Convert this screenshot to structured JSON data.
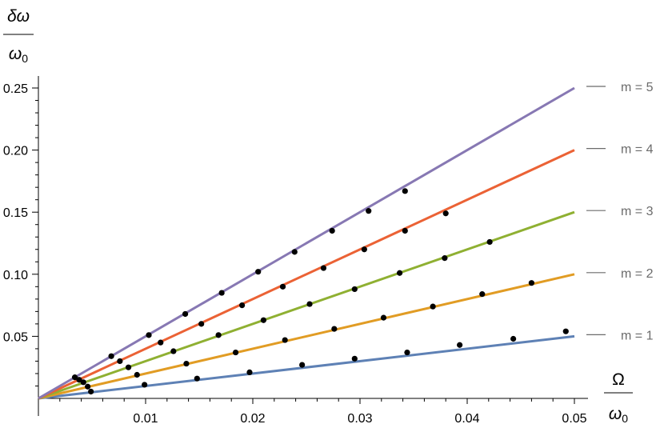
{
  "chart_data": {
    "type": "line",
    "title": "",
    "xlabel": {
      "numerator": "Ω",
      "denominator": "ω0"
    },
    "ylabel": {
      "numerator": "δω",
      "denominator": "ω0"
    },
    "xlim": [
      0,
      0.05
    ],
    "ylim": [
      0,
      0.25
    ],
    "x_ticks": [
      0.01,
      0.02,
      0.03,
      0.04,
      0.05
    ],
    "x_tick_labels": [
      "0.01",
      "0.02",
      "0.03",
      "0.04",
      "0.05"
    ],
    "y_ticks": [
      0.05,
      0.1,
      0.15,
      0.2,
      0.25
    ],
    "y_tick_labels": [
      "0.05",
      "0.10",
      "0.15",
      "0.20",
      "0.25"
    ],
    "grid": false,
    "legend_placement": "right",
    "series": [
      {
        "name": "m = 1",
        "m": 1,
        "color": "#5e81b5",
        "line": [
          [
            0,
            0
          ],
          [
            0.05,
            0.05
          ]
        ],
        "points": [
          [
            0.0049,
            0.0055
          ],
          [
            0.0099,
            0.011
          ],
          [
            0.0148,
            0.016
          ],
          [
            0.0197,
            0.021
          ],
          [
            0.0246,
            0.027
          ],
          [
            0.0295,
            0.032
          ],
          [
            0.0344,
            0.037
          ],
          [
            0.0393,
            0.043
          ],
          [
            0.0443,
            0.048
          ],
          [
            0.0492,
            0.054
          ]
        ]
      },
      {
        "name": "m = 2",
        "m": 2,
        "color": "#e19c24",
        "line": [
          [
            0,
            0
          ],
          [
            0.05,
            0.1
          ]
        ],
        "points": [
          [
            0.0046,
            0.0095
          ],
          [
            0.0092,
            0.019
          ],
          [
            0.0138,
            0.028
          ],
          [
            0.0184,
            0.037
          ],
          [
            0.023,
            0.047
          ],
          [
            0.0276,
            0.056
          ],
          [
            0.0322,
            0.065
          ],
          [
            0.0368,
            0.074
          ],
          [
            0.0414,
            0.084
          ],
          [
            0.046,
            0.093
          ]
        ]
      },
      {
        "name": "m = 3",
        "m": 3,
        "color": "#8fb032",
        "line": [
          [
            0,
            0
          ],
          [
            0.05,
            0.15
          ]
        ],
        "points": [
          [
            0.0042,
            0.013
          ],
          [
            0.0084,
            0.025
          ],
          [
            0.0126,
            0.038
          ],
          [
            0.0168,
            0.051
          ],
          [
            0.021,
            0.063
          ],
          [
            0.0253,
            0.076
          ],
          [
            0.0295,
            0.088
          ],
          [
            0.0337,
            0.101
          ],
          [
            0.0379,
            0.113
          ],
          [
            0.0421,
            0.126
          ]
        ]
      },
      {
        "name": "m = 4",
        "m": 4,
        "color": "#eb6235",
        "line": [
          [
            0,
            0
          ],
          [
            0.05,
            0.2
          ]
        ],
        "points": [
          [
            0.0038,
            0.015
          ],
          [
            0.0076,
            0.03
          ],
          [
            0.0114,
            0.045
          ],
          [
            0.0152,
            0.06
          ],
          [
            0.019,
            0.075
          ],
          [
            0.0228,
            0.09
          ],
          [
            0.0266,
            0.105
          ],
          [
            0.0304,
            0.12
          ],
          [
            0.0342,
            0.135
          ],
          [
            0.038,
            0.149
          ]
        ]
      },
      {
        "name": "m = 5",
        "m": 5,
        "color": "#8778b3",
        "line": [
          [
            0,
            0
          ],
          [
            0.05,
            0.25
          ]
        ],
        "points": [
          [
            0.0034,
            0.017
          ],
          [
            0.0068,
            0.034
          ],
          [
            0.0103,
            0.051
          ],
          [
            0.0137,
            0.068
          ],
          [
            0.0171,
            0.085
          ],
          [
            0.0205,
            0.102
          ],
          [
            0.0239,
            0.118
          ],
          [
            0.0274,
            0.135
          ],
          [
            0.0308,
            0.151
          ],
          [
            0.0342,
            0.167
          ]
        ]
      }
    ],
    "point_color": "#000000"
  }
}
